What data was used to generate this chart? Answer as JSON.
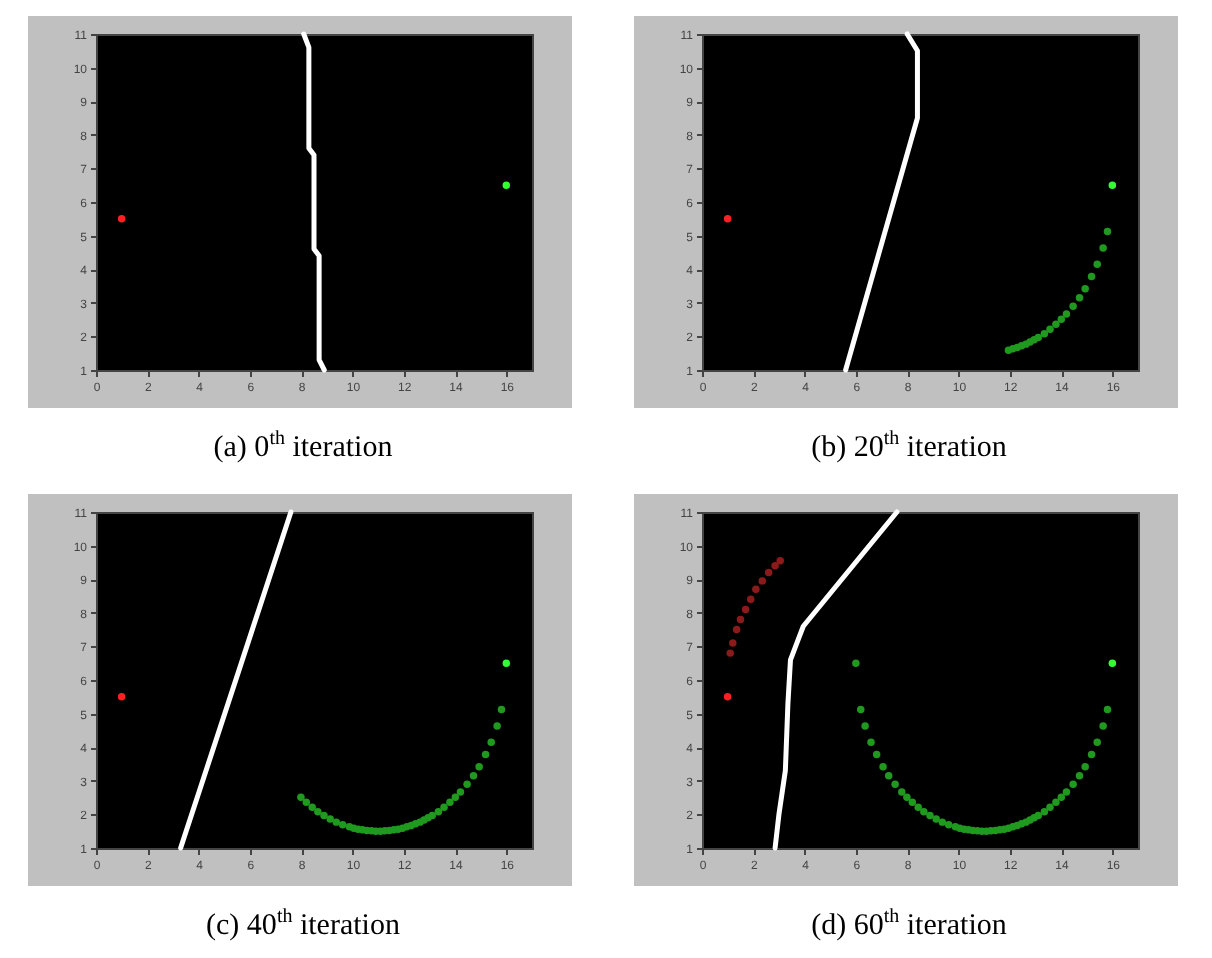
{
  "chart_data": [
    {
      "type": "scatter",
      "title": "(a) 0$^{th}$ iteration",
      "xlim": [
        0,
        17
      ],
      "ylim": [
        1,
        11
      ],
      "xticks": [
        0,
        2,
        4,
        6,
        8,
        10,
        12,
        14,
        16
      ],
      "yticks": [
        1,
        2,
        3,
        4,
        5,
        6,
        7,
        8,
        9,
        10,
        11
      ],
      "marker": "circle",
      "series": [
        {
          "type": "line",
          "marker": "none",
          "color": "#ffffff",
          "x": [
            8.1,
            8.3,
            8.3,
            8.5,
            8.5,
            8.7,
            8.7,
            8.9
          ],
          "values": [
            11,
            10.6,
            7.6,
            7.4,
            4.6,
            4.4,
            1.3,
            1
          ]
        },
        {
          "color": "#ff2020",
          "x": [
            1
          ],
          "values": [
            5.5
          ]
        },
        {
          "color": "#33ff33",
          "x": [
            16
          ],
          "values": [
            6.5
          ]
        }
      ]
    },
    {
      "type": "scatter",
      "title": "(b) 20$^{th}$ iteration",
      "xlim": [
        0,
        17
      ],
      "ylim": [
        1,
        11
      ],
      "xticks": [
        0,
        2,
        4,
        6,
        8,
        10,
        12,
        14,
        16
      ],
      "yticks": [
        1,
        2,
        3,
        4,
        5,
        6,
        7,
        8,
        9,
        10,
        11
      ],
      "marker": "circle",
      "series": [
        {
          "type": "line",
          "marker": "none",
          "color": "#ffffff",
          "x": [
            8.0,
            8.4,
            8.4,
            5.6
          ],
          "values": [
            11,
            10.5,
            8.5,
            1
          ]
        },
        {
          "color": "#ff2020",
          "x": [
            1
          ],
          "values": [
            5.5
          ]
        },
        {
          "color": "#33ff33",
          "x": [
            16
          ],
          "values": [
            6.5
          ]
        },
        {
          "color": "#1f9a1f",
          "x": [
            15.81,
            15.64,
            15.41,
            15.19,
            14.94,
            14.72,
            14.47,
            14.21,
            14.01,
            13.8,
            13.57,
            13.35,
            13.11,
            12.95,
            12.79,
            12.63,
            12.46,
            12.29,
            12.12,
            11.95
          ],
          "values": [
            5.12,
            4.63,
            4.15,
            3.78,
            3.42,
            3.15,
            2.9,
            2.67,
            2.51,
            2.36,
            2.21,
            2.08,
            1.97,
            1.9,
            1.83,
            1.77,
            1.72,
            1.67,
            1.63,
            1.59
          ]
        }
      ]
    },
    {
      "type": "scatter",
      "title": "(c) 40$^{th}$ iteration",
      "xlim": [
        0,
        17
      ],
      "ylim": [
        1,
        11
      ],
      "xticks": [
        0,
        2,
        4,
        6,
        8,
        10,
        12,
        14,
        16
      ],
      "yticks": [
        1,
        2,
        3,
        4,
        5,
        6,
        7,
        8,
        9,
        10,
        11
      ],
      "marker": "circle",
      "series": [
        {
          "type": "line",
          "marker": "none",
          "color": "#ffffff",
          "x": [
            3.3,
            7.6
          ],
          "values": [
            1,
            11
          ]
        },
        {
          "color": "#ff2020",
          "x": [
            1
          ],
          "values": [
            5.5
          ]
        },
        {
          "color": "#33ff33",
          "x": [
            16
          ],
          "values": [
            6.5
          ]
        },
        {
          "color": "#1f9a1f",
          "x": [
            15.81,
            15.64,
            15.41,
            15.19,
            14.94,
            14.72,
            14.47,
            14.21,
            14.01,
            13.8,
            13.57,
            13.35,
            13.11,
            12.95,
            12.79,
            12.63,
            12.46,
            12.29,
            12.12,
            11.95,
            11.78,
            11.61,
            11.44,
            11.26,
            11.09,
            10.91,
            10.74,
            10.56,
            10.39,
            10.22,
            10.05,
            9.88,
            9.62,
            9.37,
            9.13,
            8.89,
            8.65,
            8.43,
            8.2,
            7.99
          ],
          "values": [
            5.12,
            4.63,
            4.15,
            3.78,
            3.42,
            3.15,
            2.9,
            2.67,
            2.51,
            2.36,
            2.21,
            2.08,
            1.97,
            1.9,
            1.83,
            1.77,
            1.72,
            1.67,
            1.63,
            1.59,
            1.56,
            1.54,
            1.52,
            1.51,
            1.5,
            1.5,
            1.51,
            1.52,
            1.54,
            1.56,
            1.59,
            1.63,
            1.69,
            1.77,
            1.86,
            1.97,
            2.08,
            2.21,
            2.36,
            2.51
          ]
        }
      ]
    },
    {
      "type": "scatter",
      "title": "(d) 60$^{th}$ iteration",
      "xlim": [
        0,
        17
      ],
      "ylim": [
        1,
        11
      ],
      "xticks": [
        0,
        2,
        4,
        6,
        8,
        10,
        12,
        14,
        16
      ],
      "yticks": [
        1,
        2,
        3,
        4,
        5,
        6,
        7,
        8,
        9,
        10,
        11
      ],
      "marker": "circle",
      "series": [
        {
          "type": "line",
          "marker": "none",
          "color": "#ffffff",
          "x": [
            2.85,
            3.0,
            3.25,
            3.35,
            3.45,
            3.75,
            3.95,
            7.6
          ],
          "values": [
            1,
            2,
            3.3,
            5.3,
            6.6,
            7.2,
            7.6,
            11
          ]
        },
        {
          "color": "#ff2020",
          "x": [
            1
          ],
          "values": [
            5.5
          ]
        },
        {
          "color": "#33ff33",
          "x": [
            16
          ],
          "values": [
            6.5
          ]
        },
        {
          "color": "#8b1a1a",
          "x": [
            1.1,
            1.2,
            1.35,
            1.5,
            1.7,
            1.9,
            2.1,
            2.35,
            2.6,
            2.85,
            3.05
          ],
          "values": [
            6.8,
            7.1,
            7.5,
            7.8,
            8.1,
            8.4,
            8.7,
            8.95,
            9.2,
            9.4,
            9.55
          ]
        },
        {
          "color": "#1f9a1f",
          "x": [
            15.81,
            15.64,
            15.41,
            15.19,
            14.94,
            14.72,
            14.47,
            14.21,
            14.01,
            13.8,
            13.57,
            13.35,
            13.11,
            12.95,
            12.79,
            12.63,
            12.46,
            12.29,
            12.12,
            11.95,
            11.78,
            11.61,
            11.44,
            11.26,
            11.09,
            10.91,
            10.74,
            10.56,
            10.39,
            10.22,
            10.05,
            9.88,
            9.62,
            9.37,
            9.13,
            8.89,
            8.65,
            8.43,
            8.2,
            7.99,
            7.79,
            7.53,
            7.28,
            7.06,
            6.81,
            6.59,
            6.36,
            6.19,
            6.0
          ],
          "values": [
            5.12,
            4.63,
            4.15,
            3.78,
            3.42,
            3.15,
            2.9,
            2.67,
            2.51,
            2.36,
            2.21,
            2.08,
            1.97,
            1.9,
            1.83,
            1.77,
            1.72,
            1.67,
            1.63,
            1.59,
            1.56,
            1.54,
            1.52,
            1.51,
            1.5,
            1.5,
            1.51,
            1.52,
            1.54,
            1.56,
            1.59,
            1.63,
            1.69,
            1.77,
            1.86,
            1.97,
            2.08,
            2.21,
            2.36,
            2.51,
            2.67,
            2.9,
            3.15,
            3.42,
            3.78,
            4.15,
            4.63,
            5.12,
            6.5
          ]
        }
      ]
    }
  ]
}
